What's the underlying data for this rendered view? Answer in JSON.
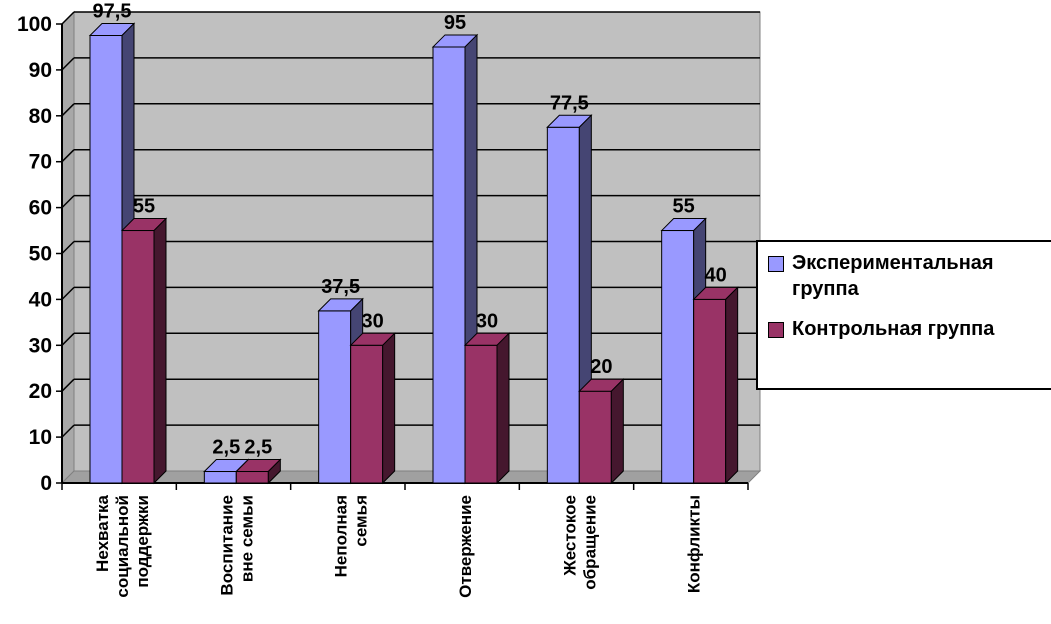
{
  "chart_data": {
    "type": "bar",
    "categories": [
      "Нехватка социальной поддержки",
      "Воспитание вне семьи",
      "Неполная семья",
      "Отвержение",
      "Жестокое обращение",
      "Конфликты"
    ],
    "category_lines": [
      [
        "Нехватка",
        "социальной",
        "поддержки"
      ],
      [
        "Воспитание",
        "вне семьи"
      ],
      [
        "Неполная",
        "семья"
      ],
      [
        "Отвержение"
      ],
      [
        "Жестокое",
        "обращение"
      ],
      [
        "Конфликты"
      ]
    ],
    "series": [
      {
        "name": "Экспериментальная группа",
        "values": [
          97.5,
          2.5,
          37.5,
          95,
          77.5,
          55
        ],
        "labels": [
          "97,5",
          "2,5",
          "37,5",
          "95",
          "77,5",
          "55"
        ],
        "color": "#9999FF"
      },
      {
        "name": "Контрольная группа",
        "values": [
          55,
          2.5,
          30,
          30,
          20,
          40
        ],
        "labels": [
          "55",
          "2,5",
          "30",
          "30",
          "20",
          "40"
        ],
        "color": "#993366"
      }
    ],
    "ylim": [
      0,
      100
    ],
    "yticks": [
      0,
      10,
      20,
      30,
      40,
      50,
      60,
      70,
      80,
      90,
      100
    ],
    "grid": true,
    "legend_position": "right",
    "background_color": "#C0C0C0",
    "title": "",
    "xlabel": "",
    "ylabel": ""
  }
}
